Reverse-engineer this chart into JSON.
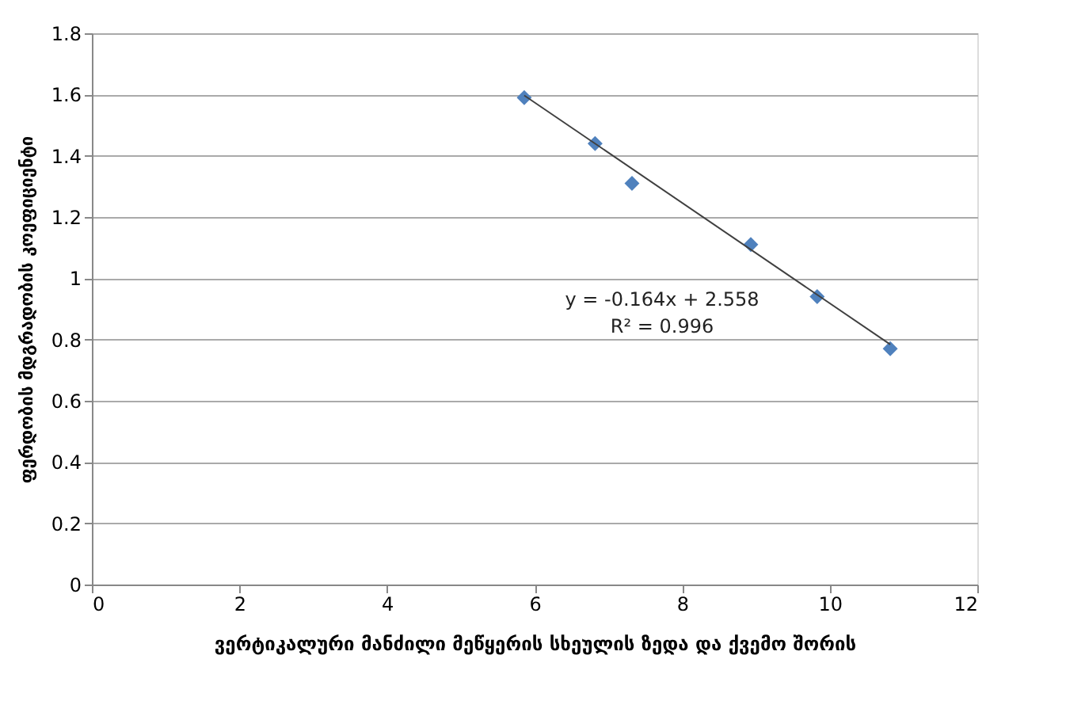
{
  "chart_data": {
    "type": "scatter",
    "xlabel": "ვერტიკალური მანძილი მეწყერის სხეულის ზედა და ქვემო შორის",
    "ylabel": "ფერდობის მდგრადობის კოეფიციენტი",
    "xlim": [
      0,
      12
    ],
    "xticks": [
      0,
      2,
      4,
      6,
      8,
      10,
      12
    ],
    "ylim": [
      0,
      1.8
    ],
    "yticks": [
      0,
      0.2,
      0.4,
      0.6,
      0.8,
      1,
      1.2,
      1.4,
      1.6,
      1.8
    ],
    "grid": "y",
    "marker": "diamond",
    "series": [
      {
        "color": "#4f81bd",
        "x": [
          5.86,
          6.82,
          7.32,
          8.93,
          9.83,
          10.82
        ],
        "values": [
          1.59,
          1.44,
          1.31,
          1.11,
          0.94,
          0.77
        ]
      },
      {
        "type": "line",
        "marker": "none",
        "line_style": "solid",
        "color": "#404040",
        "x": [
          5.86,
          10.82
        ],
        "values": [
          1.597,
          0.784
        ]
      }
    ],
    "annotations": [
      "y = -0.164x + 2.558",
      "R² = 0.996"
    ]
  }
}
